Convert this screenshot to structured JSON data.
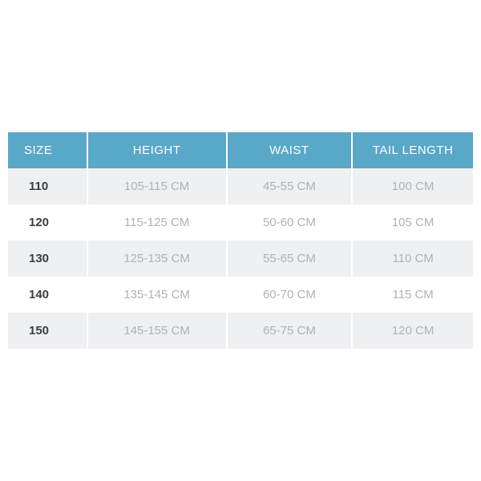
{
  "size_table": {
    "type": "table",
    "header_bg": "#5aa8c8",
    "header_color": "#ffffff",
    "row_alt_bg": "#eef0f2",
    "row_bg": "#ffffff",
    "size_text_color": "#3a3f44",
    "value_text_color": "#aeb3b8",
    "font_size": 15,
    "columns": [
      {
        "key": "size",
        "label": "SIZE",
        "width": "17%",
        "align": "left"
      },
      {
        "key": "height",
        "label": "HEIGHT",
        "width": "30%",
        "align": "center"
      },
      {
        "key": "waist",
        "label": "WAIST",
        "width": "27%",
        "align": "center"
      },
      {
        "key": "tail",
        "label": "TAIL LENGTH",
        "width": "26%",
        "align": "center"
      }
    ],
    "rows": [
      {
        "size": "110",
        "height": "105-115 CM",
        "waist": "45-55 CM",
        "tail": "100 CM"
      },
      {
        "size": "120",
        "height": "115-125 CM",
        "waist": "50-60 CM",
        "tail": "105 CM"
      },
      {
        "size": "130",
        "height": "125-135 CM",
        "waist": "55-65 CM",
        "tail": "110 CM"
      },
      {
        "size": "140",
        "height": "135-145 CM",
        "waist": "60-70 CM",
        "tail": "115 CM"
      },
      {
        "size": "150",
        "height": "145-155 CM",
        "waist": "65-75 CM",
        "tail": "120 CM"
      }
    ]
  }
}
